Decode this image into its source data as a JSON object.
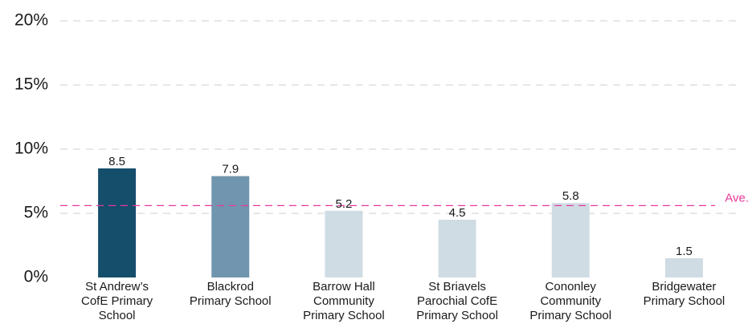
{
  "chart_data": {
    "type": "bar",
    "categories": [
      [
        "St Andrew’s",
        "CofE Primary",
        "School"
      ],
      [
        "Blackrod",
        "Primary School"
      ],
      [
        "Barrow Hall",
        "Community",
        "Primary School"
      ],
      [
        "St Briavels",
        "Parochial CofE",
        "Primary School"
      ],
      [
        "Cononley",
        "Community",
        "Primary School"
      ],
      [
        "Bridgewater",
        "Primary School"
      ]
    ],
    "values": [
      8.5,
      7.9,
      5.2,
      4.5,
      5.8,
      1.5
    ],
    "value_labels": [
      "8.5",
      "7.9",
      "5.2",
      "4.5",
      "5.8",
      "1.5"
    ],
    "bar_colors": [
      "#154e6b",
      "#7195ae",
      "#d0dce4",
      "#d0dce4",
      "#d0dce4",
      "#d0dce4"
    ],
    "ylim": [
      0,
      20
    ],
    "yticks": [
      0,
      5,
      10,
      15,
      20
    ],
    "ytick_labels": [
      "0%",
      "5%",
      "10%",
      "15%",
      "20%"
    ],
    "grid": true,
    "grid_color": "#cfcfcf",
    "average": {
      "label": "Ave.",
      "value": 5.6,
      "color": "#e6399b"
    },
    "title": "",
    "xlabel": "",
    "ylabel": ""
  }
}
